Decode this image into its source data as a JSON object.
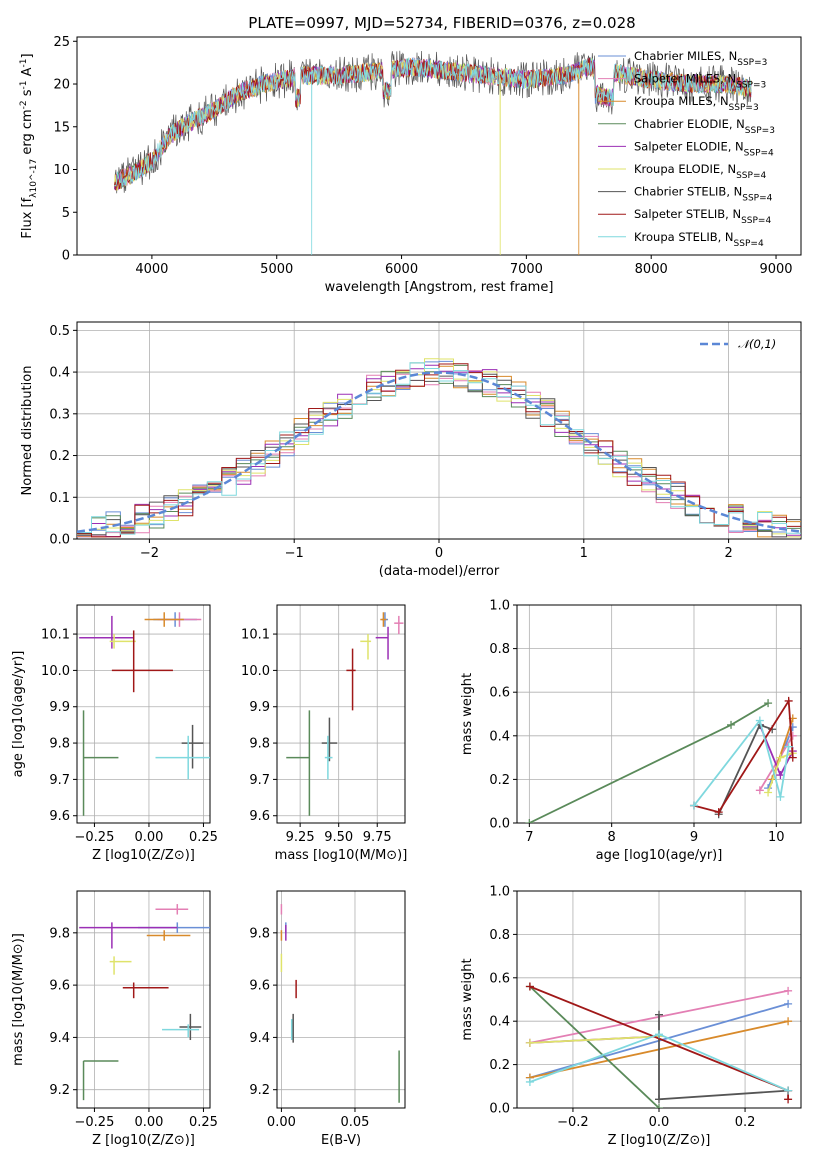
{
  "chart_data": [
    {
      "id": "spectrum",
      "type": "line",
      "title": "PLATE=0997, MJD=52734, FIBERID=0376, z=0.028",
      "xlabel": "wavelength [Angstrom, rest frame]",
      "ylabel": "Flux [f_λ10^-17 erg cm^-2 s^-1 A^-1]",
      "xlim": [
        3400,
        9200
      ],
      "ylim": [
        0,
        25.5
      ],
      "xticks": [
        4000,
        5000,
        6000,
        7000,
        8000,
        9000
      ],
      "yticks": [
        0,
        5,
        10,
        15,
        20,
        25
      ],
      "legend_position": "top-right",
      "legend": [
        {
          "name": "Chabrier MILES, N_SSP=3",
          "color": "#6a8fd6"
        },
        {
          "name": "Salpeter MILES, N_SSP=3",
          "color": "#e37fb4"
        },
        {
          "name": "Kroupa MILES, N_SSP=3",
          "color": "#d88a2b"
        },
        {
          "name": "Chabrier ELODIE, N_SSP=3",
          "color": "#5a8a5a"
        },
        {
          "name": "Salpeter ELODIE, N_SSP=4",
          "color": "#9b2fb5"
        },
        {
          "name": "Kroupa ELODIE, N_SSP=4",
          "color": "#dfe36a"
        },
        {
          "name": "Chabrier STELIB, N_SSP=4",
          "color": "#555555"
        },
        {
          "name": "Salpeter STELIB, N_SSP=4",
          "color": "#a01818"
        },
        {
          "name": "Kroupa STELIB, N_SSP=4",
          "color": "#7fd8de"
        }
      ],
      "continuum_x": [
        3700,
        3850,
        4000,
        4150,
        4300,
        4500,
        4700,
        4900,
        5200,
        5500,
        5800,
        6100,
        6400,
        6700,
        7000,
        7300,
        7500,
        7800,
        8000,
        8300,
        8600,
        8800
      ],
      "continuum_y": [
        8.5,
        9.5,
        11,
        14,
        15.5,
        17,
        19,
        20,
        21,
        21,
        21.5,
        22,
        21.5,
        21,
        20.5,
        21,
        22,
        21,
        20.5,
        20,
        20,
        19.5
      ],
      "dips": [
        {
          "x": 5280,
          "series": "Kroupa STELIB",
          "y": 0
        },
        {
          "x": 6790,
          "series": "Kroupa ELODIE",
          "y": 0
        },
        {
          "x": 7420,
          "series": "Kroupa MILES",
          "y": 0
        }
      ]
    },
    {
      "id": "residuals",
      "type": "histogram",
      "xlabel": "(data-model)/error",
      "ylabel": "Normed distribution",
      "xlim": [
        -2.5,
        2.5
      ],
      "ylim": [
        0,
        0.52
      ],
      "xticks": [
        -2,
        -1,
        0,
        1,
        2
      ],
      "yticks": [
        0.0,
        0.1,
        0.2,
        0.3,
        0.4,
        0.5
      ],
      "legend_position": "top-right",
      "reference": {
        "name": "𝒩(0,1)",
        "color": "#5b87d6",
        "style": "dashed"
      },
      "bin_width": 0.1
    },
    {
      "id": "age_vs_Z",
      "type": "scatter",
      "xlabel": "Z [log10(Z/Z⊙)]",
      "ylabel": "age [log10(age/yr)]",
      "xlim": [
        -0.33,
        0.28
      ],
      "ylim": [
        9.58,
        10.18
      ],
      "xticks": [
        -0.25,
        0.0,
        0.25
      ],
      "yticks": [
        9.6,
        9.7,
        9.8,
        9.9,
        10.0,
        10.1
      ],
      "points": [
        {
          "x": 0.12,
          "y": 10.14,
          "xerr": [
            0.1,
            0.1
          ],
          "yerr": [
            0.02,
            0.02
          ],
          "color": "#6a8fd6"
        },
        {
          "x": 0.14,
          "y": 10.14,
          "xerr": [
            0.1,
            0.1
          ],
          "yerr": [
            0.02,
            0.02
          ],
          "color": "#e37fb4"
        },
        {
          "x": 0.07,
          "y": 10.14,
          "xerr": [
            0.09,
            0.09
          ],
          "yerr": [
            0.02,
            0.02
          ],
          "color": "#d88a2b"
        },
        {
          "x": -0.3,
          "y": 9.76,
          "xerr": [
            0,
            0.16
          ],
          "yerr": [
            0.16,
            0.13
          ],
          "color": "#5a8a5a"
        },
        {
          "x": -0.17,
          "y": 10.09,
          "xerr": [
            0.15,
            0.1
          ],
          "yerr": [
            0.03,
            0.06
          ],
          "color": "#9b2fb5"
        },
        {
          "x": -0.16,
          "y": 10.08,
          "xerr": [
            0.02,
            0.1
          ],
          "yerr": [
            0.02,
            0.02
          ],
          "color": "#dfe36a"
        },
        {
          "x": 0.2,
          "y": 9.8,
          "xerr": [
            0.05,
            0.05
          ],
          "yerr": [
            0.07,
            0.05
          ],
          "color": "#555555"
        },
        {
          "x": -0.07,
          "y": 10.0,
          "xerr": [
            0.1,
            0.18
          ],
          "yerr": [
            0.06,
            0.11
          ],
          "color": "#a01818"
        },
        {
          "x": 0.18,
          "y": 9.76,
          "xerr": [
            0.15,
            0.1
          ],
          "yerr": [
            0.06,
            0.06
          ],
          "color": "#7fd8de"
        }
      ]
    },
    {
      "id": "age_vs_mass",
      "type": "scatter",
      "xlabel": "mass [log10(M/M⊙)]",
      "xlim": [
        9.1,
        9.93
      ],
      "ylim": [
        9.58,
        10.18
      ],
      "xticks": [
        9.25,
        9.5,
        9.75
      ],
      "yticks": [
        9.6,
        9.7,
        9.8,
        9.9,
        10.0,
        10.1
      ],
      "points": [
        {
          "x": 9.8,
          "y": 10.14,
          "xerr": [
            0.02,
            0.02
          ],
          "yerr": [
            0.02,
            0.02
          ],
          "color": "#6a8fd6"
        },
        {
          "x": 9.89,
          "y": 10.13,
          "xerr": [
            0.03,
            0.03
          ],
          "yerr": [
            0.03,
            0.02
          ],
          "color": "#e37fb4"
        },
        {
          "x": 9.79,
          "y": 10.14,
          "xerr": [
            0.02,
            0.02
          ],
          "yerr": [
            0.02,
            0.02
          ],
          "color": "#d88a2b"
        },
        {
          "x": 9.31,
          "y": 9.76,
          "xerr": [
            0.15,
            0.0
          ],
          "yerr": [
            0.16,
            0.13
          ],
          "color": "#5a8a5a"
        },
        {
          "x": 9.82,
          "y": 10.09,
          "xerr": [
            0.08,
            0.0
          ],
          "yerr": [
            0.06,
            0.03
          ],
          "color": "#9b2fb5"
        },
        {
          "x": 9.69,
          "y": 10.08,
          "xerr": [
            0.05,
            0.02
          ],
          "yerr": [
            0.05,
            0.02
          ],
          "color": "#dfe36a"
        },
        {
          "x": 9.44,
          "y": 9.8,
          "xerr": [
            0.05,
            0.05
          ],
          "yerr": [
            0.05,
            0.07
          ],
          "color": "#555555"
        },
        {
          "x": 9.59,
          "y": 10.0,
          "xerr": [
            0.04,
            0.02
          ],
          "yerr": [
            0.11,
            0.06
          ],
          "color": "#a01818"
        },
        {
          "x": 9.43,
          "y": 9.76,
          "xerr": [
            0.02,
            0.03
          ],
          "yerr": [
            0.06,
            0.06
          ],
          "color": "#7fd8de"
        }
      ]
    },
    {
      "id": "weight_vs_age",
      "type": "line",
      "xlabel": "age [log10(age/yr)]",
      "ylabel": "mass weight",
      "xlim": [
        6.85,
        10.3
      ],
      "ylim": [
        0,
        1.0
      ],
      "xticks": [
        7,
        8,
        9,
        10
      ],
      "yticks": [
        0.0,
        0.2,
        0.4,
        0.6,
        0.8,
        1.0
      ],
      "series": [
        {
          "name": "Chabrier MILES",
          "color": "#6a8fd6",
          "x": [
            9.9,
            10.2
          ],
          "y": [
            0.16,
            0.44
          ]
        },
        {
          "name": "Salpeter MILES",
          "color": "#e37fb4",
          "x": [
            9.8,
            10.2
          ],
          "y": [
            0.15,
            0.4
          ]
        },
        {
          "name": "Kroupa MILES",
          "color": "#d88a2b",
          "x": [
            9.95,
            10.2
          ],
          "y": [
            0.2,
            0.48
          ]
        },
        {
          "name": "Chabrier ELODIE",
          "color": "#5a8a5a",
          "x": [
            7.0,
            9.45,
            9.9
          ],
          "y": [
            0.0,
            0.45,
            0.55
          ]
        },
        {
          "name": "Salpeter ELODIE",
          "color": "#9b2fb5",
          "x": [
            9.8,
            10.05,
            10.2
          ],
          "y": [
            0.45,
            0.22,
            0.33
          ]
        },
        {
          "name": "Kroupa ELODIE",
          "color": "#dfe36a",
          "x": [
            9.9,
            10.05,
            10.2
          ],
          "y": [
            0.14,
            0.3,
            0.32
          ]
        },
        {
          "name": "Chabrier STELIB",
          "color": "#555555",
          "x": [
            9.3,
            9.8,
            9.95
          ],
          "y": [
            0.04,
            0.45,
            0.43
          ]
        },
        {
          "name": "Salpeter STELIB",
          "color": "#a01818",
          "x": [
            9.0,
            9.3,
            10.15,
            10.2
          ],
          "y": [
            0.08,
            0.05,
            0.56,
            0.3
          ]
        },
        {
          "name": "Kroupa STELIB",
          "color": "#7fd8de",
          "x": [
            9.0,
            9.8,
            10.05,
            10.15
          ],
          "y": [
            0.08,
            0.47,
            0.12,
            0.35
          ]
        }
      ]
    },
    {
      "id": "mass_vs_Z",
      "type": "scatter",
      "xlabel": "Z [log10(Z/Z⊙)]",
      "ylabel": "mass [log10(M/M⊙)]",
      "xlim": [
        -0.33,
        0.28
      ],
      "ylim": [
        9.13,
        9.96
      ],
      "xticks": [
        -0.25,
        0.0,
        0.25
      ],
      "yticks": [
        9.2,
        9.4,
        9.6,
        9.8
      ],
      "points": [
        {
          "x": 0.13,
          "y": 9.82,
          "xerr": [
            0.18,
            0.17
          ],
          "yerr": [
            0.02,
            0.02
          ],
          "color": "#6a8fd6"
        },
        {
          "x": 0.13,
          "y": 9.89,
          "xerr": [
            0.1,
            0.05
          ],
          "yerr": [
            0.02,
            0.02
          ],
          "color": "#e37fb4"
        },
        {
          "x": 0.07,
          "y": 9.79,
          "xerr": [
            0.08,
            0.12
          ],
          "yerr": [
            0.02,
            0.02
          ],
          "color": "#d88a2b"
        },
        {
          "x": -0.3,
          "y": 9.31,
          "xerr": [
            0,
            0.16
          ],
          "yerr": [
            0.15,
            0.0
          ],
          "color": "#5a8a5a"
        },
        {
          "x": -0.17,
          "y": 9.82,
          "xerr": [
            0.15,
            0.3
          ],
          "yerr": [
            0.08,
            0.02
          ],
          "color": "#9b2fb5"
        },
        {
          "x": -0.16,
          "y": 9.69,
          "xerr": [
            0.02,
            0.08
          ],
          "yerr": [
            0.05,
            0.02
          ],
          "color": "#dfe36a"
        },
        {
          "x": 0.19,
          "y": 9.44,
          "xerr": [
            0.05,
            0.05
          ],
          "yerr": [
            0.05,
            0.05
          ],
          "color": "#555555"
        },
        {
          "x": -0.07,
          "y": 9.59,
          "xerr": [
            0.05,
            0.16
          ],
          "yerr": [
            0.04,
            0.02
          ],
          "color": "#a01818"
        },
        {
          "x": 0.18,
          "y": 9.43,
          "xerr": [
            0.12,
            0.05
          ],
          "yerr": [
            0.03,
            0.02
          ],
          "color": "#7fd8de"
        }
      ]
    },
    {
      "id": "mass_vs_ebv",
      "type": "scatter",
      "xlabel": "E(B-V)",
      "xlim": [
        -0.003,
        0.084
      ],
      "ylim": [
        9.13,
        9.96
      ],
      "xticks": [
        0.0,
        0.05
      ],
      "yticks": [
        9.2,
        9.4,
        9.6,
        9.8
      ],
      "points": [
        {
          "x": 0.003,
          "y": 9.82,
          "xerr": [
            0,
            0
          ],
          "yerr": [
            0.02,
            0.02
          ],
          "color": "#6a8fd6"
        },
        {
          "x": 0.0,
          "y": 9.89,
          "xerr": [
            0,
            0
          ],
          "yerr": [
            0.02,
            0.02
          ],
          "color": "#e37fb4"
        },
        {
          "x": 0.0,
          "y": 9.79,
          "xerr": [
            0,
            0
          ],
          "yerr": [
            0.02,
            0.02
          ],
          "color": "#d88a2b"
        },
        {
          "x": 0.08,
          "y": 9.25,
          "xerr": [
            0,
            0
          ],
          "yerr": [
            0.1,
            0.1
          ],
          "color": "#5a8a5a"
        },
        {
          "x": 0.003,
          "y": 9.8,
          "xerr": [
            0,
            0
          ],
          "yerr": [
            0.03,
            0.03
          ],
          "color": "#9b2fb5"
        },
        {
          "x": 0.0,
          "y": 9.69,
          "xerr": [
            0,
            0
          ],
          "yerr": [
            0.04,
            0.03
          ],
          "color": "#dfe36a"
        },
        {
          "x": 0.008,
          "y": 9.44,
          "xerr": [
            0,
            0
          ],
          "yerr": [
            0.06,
            0.05
          ],
          "color": "#555555"
        },
        {
          "x": 0.01,
          "y": 9.59,
          "xerr": [
            0,
            0
          ],
          "yerr": [
            0.04,
            0.03
          ],
          "color": "#a01818"
        },
        {
          "x": 0.007,
          "y": 9.43,
          "xerr": [
            0,
            0
          ],
          "yerr": [
            0.04,
            0.04
          ],
          "color": "#7fd8de"
        }
      ]
    },
    {
      "id": "weight_vs_Z",
      "type": "line",
      "xlabel": "Z [log10(Z/Z⊙)]",
      "ylabel": "mass weight",
      "xlim": [
        -0.33,
        0.33
      ],
      "ylim": [
        0,
        1.0
      ],
      "xticks": [
        -0.2,
        0.0,
        0.2
      ],
      "yticks": [
        0.0,
        0.2,
        0.4,
        0.6,
        0.8,
        1.0
      ],
      "series": [
        {
          "name": "Chabrier MILES",
          "color": "#6a8fd6",
          "x": [
            -0.3,
            0.3
          ],
          "y": [
            0.14,
            0.48
          ]
        },
        {
          "name": "Salpeter MILES",
          "color": "#e37fb4",
          "x": [
            -0.3,
            0.3
          ],
          "y": [
            0.3,
            0.54
          ]
        },
        {
          "name": "Kroupa MILES",
          "color": "#d88a2b",
          "x": [
            -0.3,
            0.3
          ],
          "y": [
            0.14,
            0.4
          ]
        },
        {
          "name": "Chabrier ELODIE",
          "color": "#5a8a5a",
          "x": [
            -0.3,
            0.0
          ],
          "y": [
            0.56,
            0.0
          ]
        },
        {
          "name": "Salpeter ELODIE",
          "color": "#9b2fb5",
          "x": [
            -0.3,
            0.0
          ],
          "y": [
            0.3,
            0.33
          ]
        },
        {
          "name": "Kroupa ELODIE",
          "color": "#dfe36a",
          "x": [
            -0.3,
            0.0
          ],
          "y": [
            0.3,
            0.33
          ]
        },
        {
          "name": "Chabrier STELIB",
          "color": "#555555",
          "x": [
            0.0,
            0.0,
            0.3
          ],
          "y": [
            0.43,
            0.04,
            0.08
          ]
        },
        {
          "name": "Salpeter STELIB",
          "color": "#a01818",
          "x": [
            -0.3,
            0.3,
            0.3
          ],
          "y": [
            0.56,
            0.08,
            0.04
          ]
        },
        {
          "name": "Kroupa STELIB",
          "color": "#7fd8de",
          "x": [
            -0.3,
            0.0,
            0.3
          ],
          "y": [
            0.12,
            0.34,
            0.08
          ]
        }
      ]
    }
  ]
}
